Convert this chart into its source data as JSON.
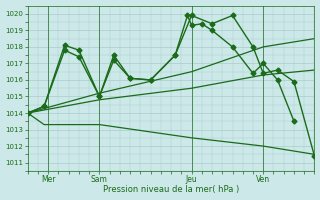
{
  "background_color": "#cce8e8",
  "grid_color": "#aacccc",
  "line_color": "#1a6b1a",
  "ylabel_ticks": [
    1011,
    1012,
    1013,
    1014,
    1015,
    1016,
    1017,
    1018,
    1019,
    1020
  ],
  "ylim": [
    1010.5,
    1020.5
  ],
  "xlim": [
    0,
    14
  ],
  "xlabel": "Pression niveau de la mer( hPa )",
  "xtick_labels": [
    "Mer",
    "Sam",
    "Jeu",
    "Ven"
  ],
  "xtick_positions": [
    1.0,
    3.5,
    8.0,
    11.5
  ],
  "vline_positions": [
    1.0,
    3.5,
    8.0,
    11.5
  ],
  "series": [
    {
      "x": [
        0.0,
        0.8,
        1.8,
        2.5,
        3.5,
        4.2,
        5.0,
        6.0,
        7.2,
        7.8,
        8.0,
        8.5,
        9.0,
        10.0,
        11.0,
        11.5,
        12.2,
        13.0
      ],
      "y": [
        1014.0,
        1014.4,
        1018.1,
        1017.8,
        1015.0,
        1017.5,
        1016.1,
        1016.0,
        1017.5,
        1019.9,
        1019.3,
        1019.4,
        1019.0,
        1018.0,
        1016.4,
        1017.0,
        1016.0,
        1013.5
      ],
      "has_markers": true,
      "lw": 1.0,
      "ms": 2.5
    },
    {
      "x": [
        0.0,
        0.8,
        1.8,
        2.5,
        3.5,
        4.2,
        5.0,
        6.0,
        7.2,
        8.0,
        9.0,
        10.0,
        11.0,
        11.5,
        12.2,
        13.0,
        14.0
      ],
      "y": [
        1014.0,
        1014.4,
        1017.8,
        1017.4,
        1015.0,
        1017.2,
        1016.1,
        1016.0,
        1017.5,
        1019.9,
        1019.4,
        1019.9,
        1018.0,
        1016.4,
        1016.6,
        1015.9,
        1011.4
      ],
      "has_markers": true,
      "lw": 1.0,
      "ms": 2.5
    },
    {
      "x": [
        0.0,
        3.5,
        8.0,
        11.5,
        14.0
      ],
      "y": [
        1014.0,
        1015.2,
        1016.5,
        1018.0,
        1018.5
      ],
      "has_markers": false,
      "lw": 0.9,
      "ms": 0
    },
    {
      "x": [
        0.0,
        3.5,
        8.0,
        11.5,
        14.0
      ],
      "y": [
        1014.0,
        1014.8,
        1015.5,
        1016.3,
        1016.6
      ],
      "has_markers": false,
      "lw": 0.9,
      "ms": 0
    },
    {
      "x": [
        0.0,
        0.8,
        3.5,
        8.0,
        11.5,
        13.0,
        14.0
      ],
      "y": [
        1014.0,
        1013.3,
        1013.3,
        1012.5,
        1012.0,
        1011.7,
        1011.5
      ],
      "has_markers": false,
      "lw": 0.9,
      "ms": 0
    }
  ]
}
